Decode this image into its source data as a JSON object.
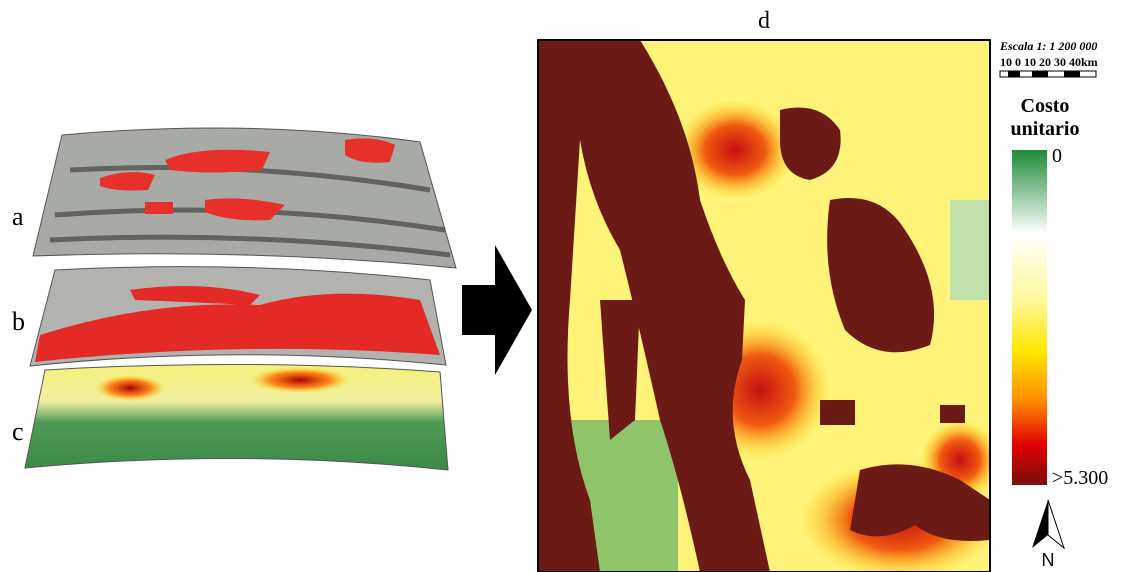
{
  "panels": {
    "a": "a",
    "b": "b",
    "c": "c",
    "d": "d"
  },
  "scale": {
    "title": "Escala 1: 1 200 000",
    "labels": "10 0 10 20 30 40km"
  },
  "legend": {
    "title_lines": [
      "Costo",
      "unitario"
    ],
    "min_label": "0",
    "max_label": ">5.300"
  },
  "north": "N"
}
